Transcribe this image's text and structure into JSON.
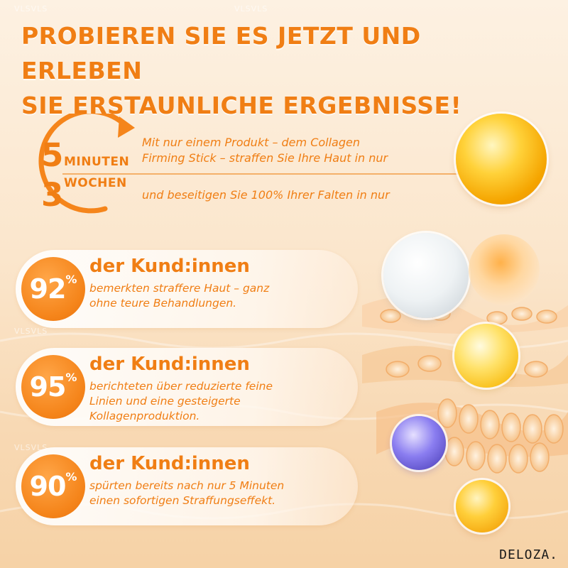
{
  "headline": {
    "line1": "PROBIEREN SIE ES JETZT UND ERLEBEN",
    "line2": "SIE ERSTAUNLICHE ERGEBNISSE!"
  },
  "timing": {
    "first_number": "5",
    "first_unit": "MINUTEN",
    "first_text_line1": "Mit nur einem Produkt – dem Collagen",
    "first_text_line2": "Firming Stick – straffen Sie Ihre Haut in nur",
    "second_number": "3",
    "second_unit": "WOCHEN",
    "second_text": "und beseitigen Sie 100% Ihrer Falten in nur"
  },
  "stats": [
    {
      "percent": "92",
      "sign": "%",
      "heading": "der Kund:innen",
      "text_line1": "bemerkten straffere Haut – ganz",
      "text_line2": "ohne teure Behandlungen.",
      "text_line3": ""
    },
    {
      "percent": "95",
      "sign": "%",
      "heading": "der Kund:innen",
      "text_line1": "berichteten über reduzierte feine",
      "text_line2": "Linien und eine gesteigerte",
      "text_line3": "Kollagenproduktion."
    },
    {
      "percent": "90",
      "sign": "%",
      "heading": "der Kund:innen",
      "text_line1": "spürten bereits nach nur 5 Minuten",
      "text_line2": "einen sofortigen Straffungseffekt.",
      "text_line3": ""
    }
  ],
  "brand": "DELOZA.",
  "watermark": "VLSVLS",
  "colors": {
    "accent": "#f07e14",
    "background": "#fbe6cc",
    "circle": "#f5851b"
  }
}
